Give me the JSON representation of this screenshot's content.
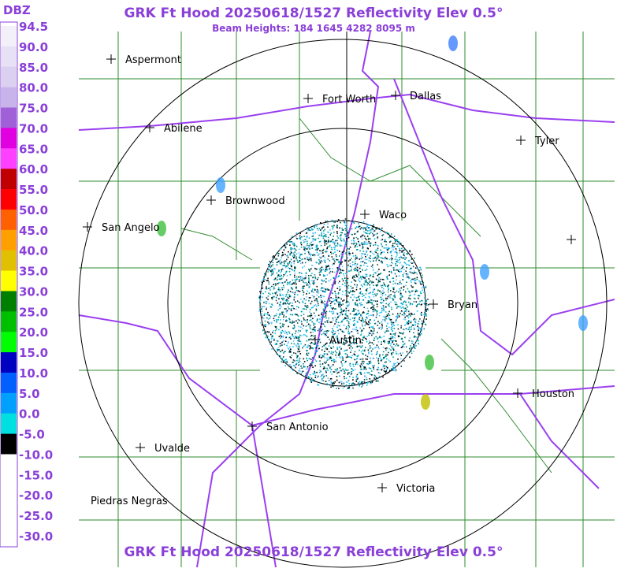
{
  "header": {
    "title": "GRK Ft Hood 20250618/1527 Reflectivity Elev 0.5°",
    "subtitle": "Beam Heights: 184 1645 4282 8095 m"
  },
  "colorbar": {
    "unit": "DBZ",
    "labels": [
      "94.5",
      "90.0",
      "85.0",
      "80.0",
      "75.0",
      "70.0",
      "65.0",
      "60.0",
      "55.0",
      "50.0",
      "45.0",
      "40.0",
      "35.0",
      "30.0",
      "25.0",
      "20.0",
      "15.0",
      "10.0",
      "5.0",
      "0.0",
      "-5.0",
      "-10.0",
      "-15.0",
      "-20.0",
      "-25.0",
      "-30.0"
    ]
  },
  "cities": [
    {
      "label": "Aspermont"
    },
    {
      "label": "Fort Worth"
    },
    {
      "label": "Dallas"
    },
    {
      "label": "Abilene"
    },
    {
      "label": "Tyler"
    },
    {
      "label": "Brownwood"
    },
    {
      "label": "Waco"
    },
    {
      "label": "San Angelo"
    },
    {
      "label": "Bryan"
    },
    {
      "label": "Austin"
    },
    {
      "label": "Houston"
    },
    {
      "label": "San Antonio"
    },
    {
      "label": "Uvalde"
    },
    {
      "label": "Victoria"
    },
    {
      "label": "Piedras Negras"
    }
  ],
  "footer": {
    "title": "GRK Ft Hood 20250618/1527 Reflectivity Elev 0.5°"
  }
}
